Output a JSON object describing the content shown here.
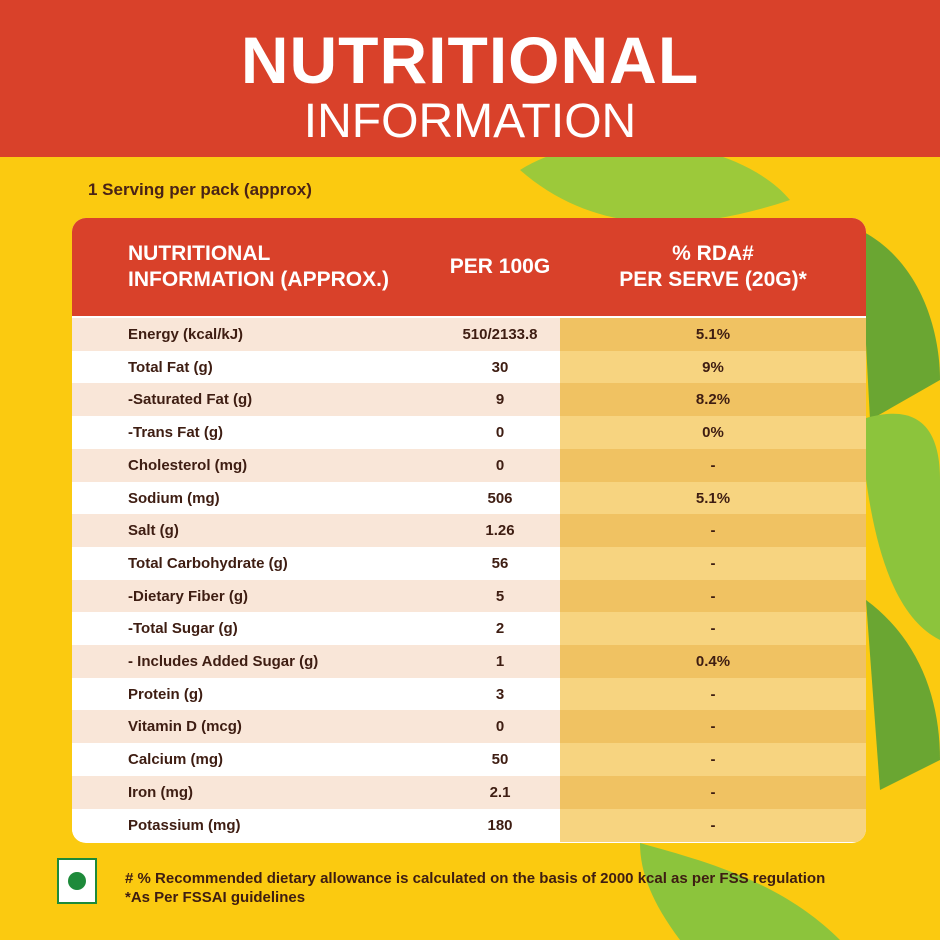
{
  "header": {
    "title_line1": "NUTRITIONAL",
    "title_line2": "INFORMATION"
  },
  "serving": "1 Serving per pack (approx)",
  "table": {
    "columns": [
      [
        "NUTRITIONAL",
        "INFORMATION (APPROX.)"
      ],
      [
        "PER 100G"
      ],
      [
        "% RDA#",
        "PER SERVE (20G)*"
      ]
    ],
    "rows": [
      [
        "Energy (kcal/kJ)",
        "510/2133.8",
        "5.1%"
      ],
      [
        "Total Fat (g)",
        "30",
        "9%"
      ],
      [
        "-Saturated Fat (g)",
        "9",
        "8.2%"
      ],
      [
        "-Trans Fat (g)",
        "0",
        "0%"
      ],
      [
        "Cholesterol (mg)",
        "0",
        "-"
      ],
      [
        "Sodium (mg)",
        "506",
        "5.1%"
      ],
      [
        "Salt (g)",
        "1.26",
        "-"
      ],
      [
        "Total Carbohydrate (g)",
        "56",
        "-"
      ],
      [
        "-Dietary Fiber (g)",
        "5",
        "-"
      ],
      [
        "-Total Sugar (g)",
        "2",
        "-"
      ],
      [
        "- Includes Added Sugar (g)",
        "1",
        "0.4%"
      ],
      [
        "Protein (g)",
        "3",
        "-"
      ],
      [
        "Vitamin D (mcg)",
        "0",
        "-"
      ],
      [
        "Calcium (mg)",
        "50",
        "-"
      ],
      [
        "Iron (mg)",
        "2.1",
        "-"
      ],
      [
        "Potassium (mg)",
        "180",
        "-"
      ]
    ]
  },
  "footnotes": [
    "# % Recommended dietary allowance  is calculated on the basis of 2000 kcal as per FSS regulation",
    "*As Per FSSAI guidelines"
  ]
}
